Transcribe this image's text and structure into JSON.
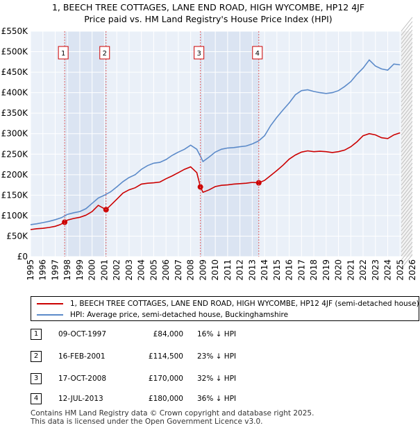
{
  "title_lines": [
    "1, BEECH TREE COTTAGES, LANE END ROAD, HIGH WYCOMBE, HP12 4JF",
    "Price paid vs. HM Land Registry's House Price Index (HPI)"
  ],
  "chart_data": {
    "type": "line",
    "title": "1, BEECH TREE COTTAGES, LANE END ROAD, HIGH WYCOMBE, HP12 4JF — Price paid vs. HM Land Registry's House Price Index (HPI)",
    "xlim": [
      1995,
      2026
    ],
    "ylim": [
      0,
      550000
    ],
    "y_ticks": [
      0,
      50000,
      100000,
      150000,
      200000,
      250000,
      300000,
      350000,
      400000,
      450000,
      500000,
      550000
    ],
    "y_tick_labels": [
      "£0",
      "£50K",
      "£100K",
      "£150K",
      "£200K",
      "£250K",
      "£300K",
      "£350K",
      "£400K",
      "£450K",
      "£500K",
      "£550K"
    ],
    "x_ticks": [
      1995,
      1996,
      1997,
      1998,
      1999,
      2000,
      2001,
      2002,
      2003,
      2004,
      2005,
      2006,
      2007,
      2008,
      2009,
      2010,
      2011,
      2012,
      2013,
      2014,
      2015,
      2016,
      2017,
      2018,
      2019,
      2020,
      2021,
      2022,
      2023,
      2024,
      2025,
      2026
    ],
    "x_tick_labels": [
      "1995",
      "1996",
      "1997",
      "1998",
      "1999",
      "2000",
      "2001",
      "2002",
      "2003",
      "2004",
      "2005",
      "2006",
      "2007",
      "2008",
      "2009",
      "2010",
      "2011",
      "2012",
      "2013",
      "2014",
      "2015",
      "2016",
      "2017",
      "2018",
      "2019",
      "2020",
      "2021",
      "2022",
      "2023",
      "2024",
      "2025",
      "2026"
    ],
    "grid": true,
    "shaded_ranges": [
      [
        1997.77,
        2001.13
      ],
      [
        2008.79,
        2013.53
      ]
    ],
    "forecast_start": 2025.1,
    "series": [
      {
        "name": "1, BEECH TREE COTTAGES, LANE END ROAD, HIGH WYCOMBE, HP12 4JF (semi-detached house)",
        "color": "#cc0000",
        "x": [
          1995.0,
          1995.5,
          1996.0,
          1996.5,
          1997.0,
          1997.4,
          1997.77,
          1998.0,
          1998.5,
          1999.0,
          1999.5,
          2000.0,
          2000.5,
          2001.13,
          2001.5,
          2002.0,
          2002.5,
          2003.0,
          2003.5,
          2004.0,
          2004.5,
          2005.0,
          2005.5,
          2006.0,
          2006.5,
          2007.0,
          2007.5,
          2008.0,
          2008.5,
          2008.79,
          2009.0,
          2009.5,
          2010.0,
          2010.5,
          2011.0,
          2011.5,
          2012.0,
          2012.5,
          2013.0,
          2013.53,
          2014.0,
          2014.5,
          2015.0,
          2015.5,
          2016.0,
          2016.5,
          2017.0,
          2017.5,
          2018.0,
          2018.5,
          2019.0,
          2019.5,
          2020.0,
          2020.5,
          2021.0,
          2021.5,
          2022.0,
          2022.5,
          2023.0,
          2023.5,
          2024.0,
          2024.5,
          2025.0
        ],
        "values": [
          66000,
          68000,
          69000,
          71000,
          74000,
          78000,
          84000,
          89000,
          93000,
          96000,
          101000,
          110000,
          125000,
          114500,
          125000,
          140000,
          155000,
          163000,
          168000,
          177000,
          179000,
          180000,
          182000,
          190000,
          197000,
          205000,
          213000,
          219000,
          205000,
          170000,
          157000,
          163000,
          171000,
          174000,
          175000,
          177000,
          178000,
          179000,
          181000,
          180000,
          186000,
          198000,
          210000,
          223000,
          238000,
          248000,
          255000,
          258000,
          256000,
          257000,
          256000,
          254000,
          256000,
          260000,
          268000,
          280000,
          295000,
          300000,
          297000,
          290000,
          288000,
          297000,
          302000
        ]
      },
      {
        "name": "HPI: Average price, semi-detached house, Buckinghamshire",
        "color": "#5b8ac9",
        "x": [
          1995.0,
          1995.5,
          1996.0,
          1996.5,
          1997.0,
          1997.5,
          1998.0,
          1998.5,
          1999.0,
          1999.5,
          2000.0,
          2000.5,
          2001.0,
          2001.5,
          2002.0,
          2002.5,
          2003.0,
          2003.5,
          2004.0,
          2004.5,
          2005.0,
          2005.5,
          2006.0,
          2006.5,
          2007.0,
          2007.5,
          2008.0,
          2008.5,
          2008.79,
          2009.0,
          2009.5,
          2010.0,
          2010.5,
          2011.0,
          2011.5,
          2012.0,
          2012.5,
          2013.0,
          2013.5,
          2014.0,
          2014.5,
          2015.0,
          2015.5,
          2016.0,
          2016.5,
          2017.0,
          2017.5,
          2018.0,
          2018.5,
          2019.0,
          2019.5,
          2020.0,
          2020.5,
          2021.0,
          2021.5,
          2022.0,
          2022.5,
          2023.0,
          2023.5,
          2024.0,
          2024.5,
          2025.0
        ],
        "values": [
          78000,
          80000,
          83000,
          86000,
          90000,
          95000,
          103000,
          107000,
          110000,
          117000,
          130000,
          143000,
          150000,
          158000,
          170000,
          183000,
          193000,
          200000,
          213000,
          222000,
          228000,
          230000,
          237000,
          247000,
          255000,
          262000,
          272000,
          262000,
          245000,
          232000,
          243000,
          255000,
          262000,
          265000,
          266000,
          268000,
          270000,
          275000,
          282000,
          295000,
          320000,
          340000,
          358000,
          375000,
          395000,
          405000,
          407000,
          403000,
          400000,
          398000,
          400000,
          405000,
          415000,
          427000,
          445000,
          460000,
          480000,
          465000,
          458000,
          455000,
          470000,
          468000
        ]
      }
    ],
    "sales": [
      {
        "label": "1",
        "x": 1997.77,
        "price": 84000
      },
      {
        "label": "2",
        "x": 2001.13,
        "price": 114500
      },
      {
        "label": "3",
        "x": 2008.79,
        "price": 170000
      },
      {
        "label": "4",
        "x": 2013.53,
        "price": 180000
      }
    ]
  },
  "legend": [
    {
      "label": "1, BEECH TREE COTTAGES, LANE END ROAD, HIGH WYCOMBE, HP12 4JF (semi-detached house)",
      "color": "#cc0000"
    },
    {
      "label": "HPI: Average price, semi-detached house, Buckinghamshire",
      "color": "#5b8ac9"
    }
  ],
  "transactions": [
    {
      "num": "1",
      "date": "09-OCT-1997",
      "price": "£84,000",
      "hpi": "16% ↓ HPI"
    },
    {
      "num": "2",
      "date": "16-FEB-2001",
      "price": "£114,500",
      "hpi": "23% ↓ HPI"
    },
    {
      "num": "3",
      "date": "17-OCT-2008",
      "price": "£170,000",
      "hpi": "32% ↓ HPI"
    },
    {
      "num": "4",
      "date": "12-JUL-2013",
      "price": "£180,000",
      "hpi": "36% ↓ HPI"
    }
  ],
  "footer": [
    "Contains HM Land Registry data © Crown copyright and database right 2025.",
    "This data is licensed under the Open Government Licence v3.0."
  ]
}
